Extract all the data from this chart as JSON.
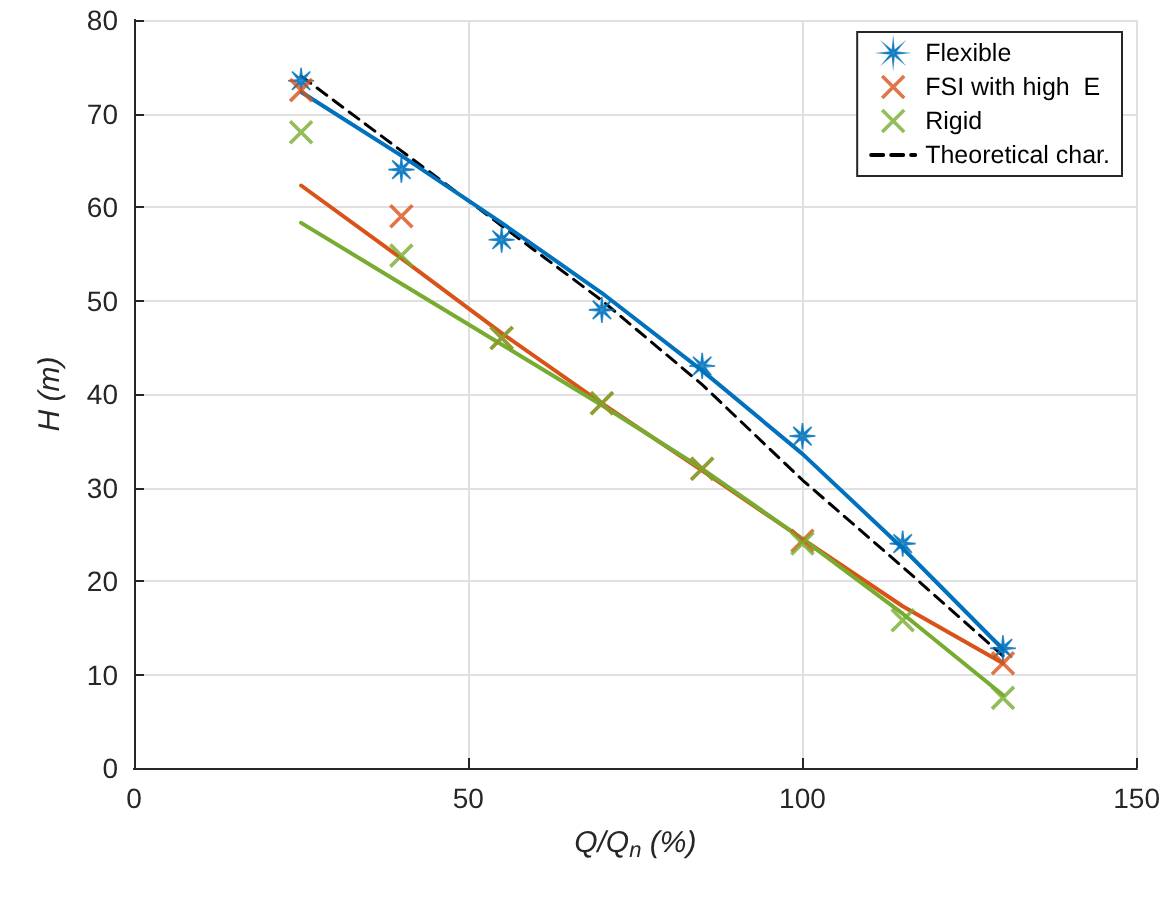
{
  "chart_data": {
    "type": "scatter",
    "xlabel": "Q/Q$_{n}$ (%)",
    "ylabel": "H (m)",
    "x": [
      25,
      40,
      55,
      70,
      85,
      100,
      115,
      130
    ],
    "series": [
      {
        "name": "Flexible",
        "color": "#0072bd",
        "marker": "star",
        "values": [
          73.5,
          64,
          56.5,
          49,
          43,
          35.5,
          24,
          12.8
        ]
      },
      {
        "name": "FSI with high  E",
        "color": "#d95319",
        "marker": "cross",
        "values": [
          72.5,
          59,
          46,
          39,
          32,
          24.3,
          null,
          11.2
        ]
      },
      {
        "name": "Rigid",
        "color": "#77ac30",
        "marker": "cross",
        "values": [
          68,
          54.8,
          46,
          39,
          32,
          24,
          15.8,
          7.5
        ]
      },
      {
        "name": "Theoretical char.",
        "type": "line",
        "color": "#000000",
        "line_style": "dashed",
        "marker": "none",
        "x": [
          25,
          55,
          70,
          85,
          100,
          115,
          130
        ],
        "values": [
          74,
          58,
          50,
          41,
          30.8,
          21.5,
          12
        ]
      },
      {
        "type": "line",
        "color": "#0072bd",
        "marker": "none",
        "values": [
          72.3,
          65.5,
          58.3,
          50.8,
          42.5,
          33.6,
          23.5,
          12.7
        ]
      },
      {
        "type": "line",
        "color": "#d95319",
        "marker": "none",
        "values": [
          62.3,
          54.5,
          46.5,
          39,
          31.8,
          24.5,
          17.3,
          11.2
        ]
      },
      {
        "type": "line",
        "color": "#77ac30",
        "marker": "none",
        "values": [
          58.3,
          51.8,
          45.3,
          38.8,
          32,
          24.5,
          16.5,
          7.8
        ]
      }
    ],
    "xlim": [
      0,
      150
    ],
    "xticks": [
      0,
      50,
      100,
      150
    ],
    "ylim": [
      0,
      80
    ],
    "yticks": [
      0,
      10,
      20,
      30,
      40,
      50,
      60,
      70,
      80
    ],
    "grid": true,
    "legend": "top right"
  }
}
